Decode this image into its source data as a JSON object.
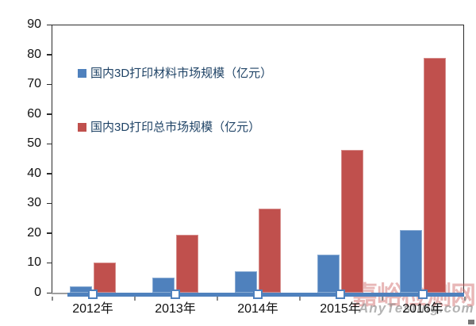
{
  "chart_data": {
    "type": "bar",
    "title": "",
    "categories": [
      "2012年",
      "2013年",
      "2014年",
      "2015年",
      "2016年"
    ],
    "series": [
      {
        "name": "国内3D打印材料市场规模（亿元）",
        "color": "#4F81BD",
        "values": [
          2,
          5,
          7.2,
          12.8,
          21
        ]
      },
      {
        "name": "国内3D打印总市场规模（亿元）",
        "color": "#C0504D",
        "values": [
          10,
          19.5,
          28.2,
          48,
          78.8
        ]
      }
    ],
    "zero_marker_series": {
      "description": "unlabeled line series drawn along the x-axis with white square markers at each year",
      "line_color": "#4F81BD",
      "marker_fill": "#FFFFFF",
      "marker_border": "#4F81BD",
      "values": [
        0,
        0,
        0,
        0,
        0
      ]
    },
    "xlabel": "",
    "ylabel": "",
    "ylim": [
      0,
      90
    ],
    "yticks": [
      0,
      10,
      20,
      30,
      40,
      50,
      60,
      70,
      80,
      90
    ],
    "grid": false,
    "legend_position": "inside-top-left",
    "legend_text_color": "#1F4366",
    "axis_color": "#2b2b2b",
    "xaxis_line_color": "#9e9e9e",
    "tick_label_color": "#111111"
  },
  "watermark": {
    "line1": "嘉峪检测网",
    "line2": "AnyTesting.com",
    "line1_color": "rgba(205,95,95,0.45)",
    "line2_color": "rgba(130,130,130,0.6)"
  }
}
